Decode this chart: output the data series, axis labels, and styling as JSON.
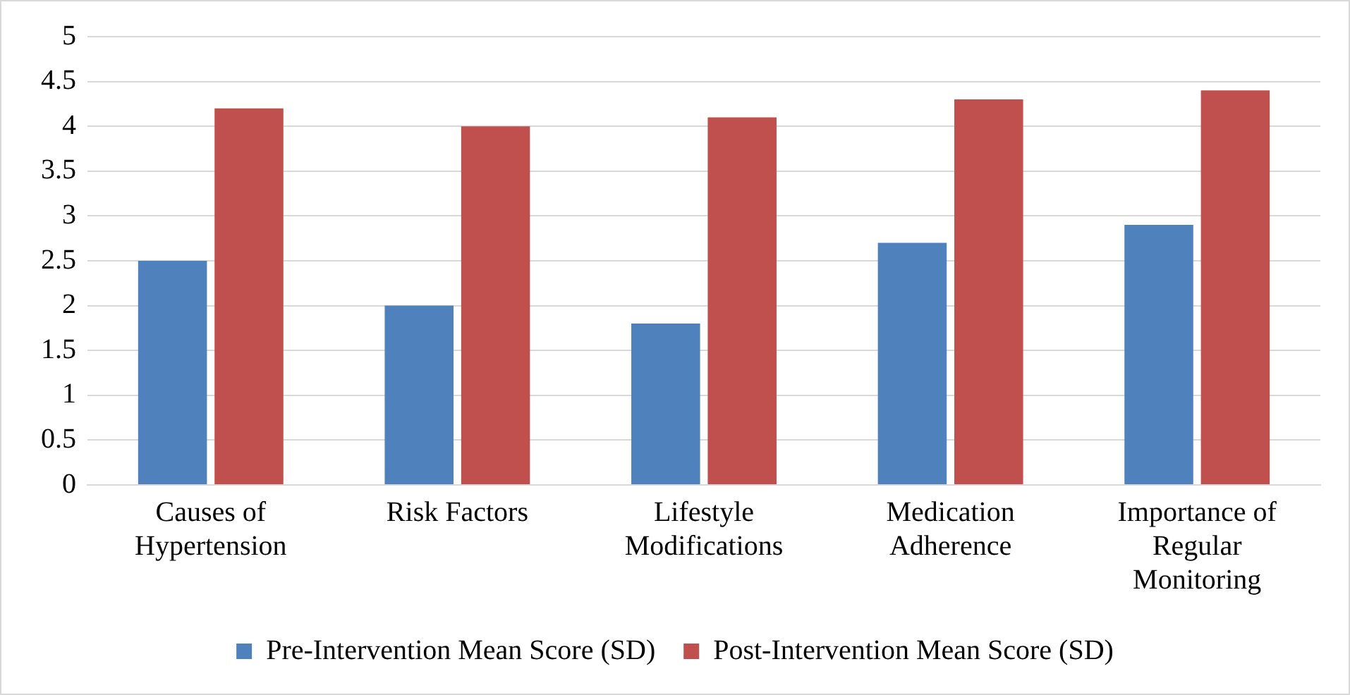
{
  "chart_data": {
    "type": "bar",
    "categories": [
      "Causes of Hypertension",
      "Risk Factors",
      "Lifestyle Modifications",
      "Medication Adherence",
      "Importance of Regular Monitoring"
    ],
    "series": [
      {
        "name": "Pre-Intervention Mean Score (SD)",
        "color": "#4f81bd",
        "values": [
          2.5,
          2.0,
          1.8,
          2.7,
          2.9
        ]
      },
      {
        "name": "Post-Intervention Mean Score (SD)",
        "color": "#c0504d",
        "values": [
          4.2,
          4.0,
          4.1,
          4.3,
          4.4
        ]
      }
    ],
    "ylim": [
      0,
      5
    ],
    "yticks": [
      0,
      0.5,
      1,
      1.5,
      2,
      2.5,
      3,
      3.5,
      4,
      4.5,
      5
    ],
    "grid": "y",
    "legend": "bottom"
  }
}
